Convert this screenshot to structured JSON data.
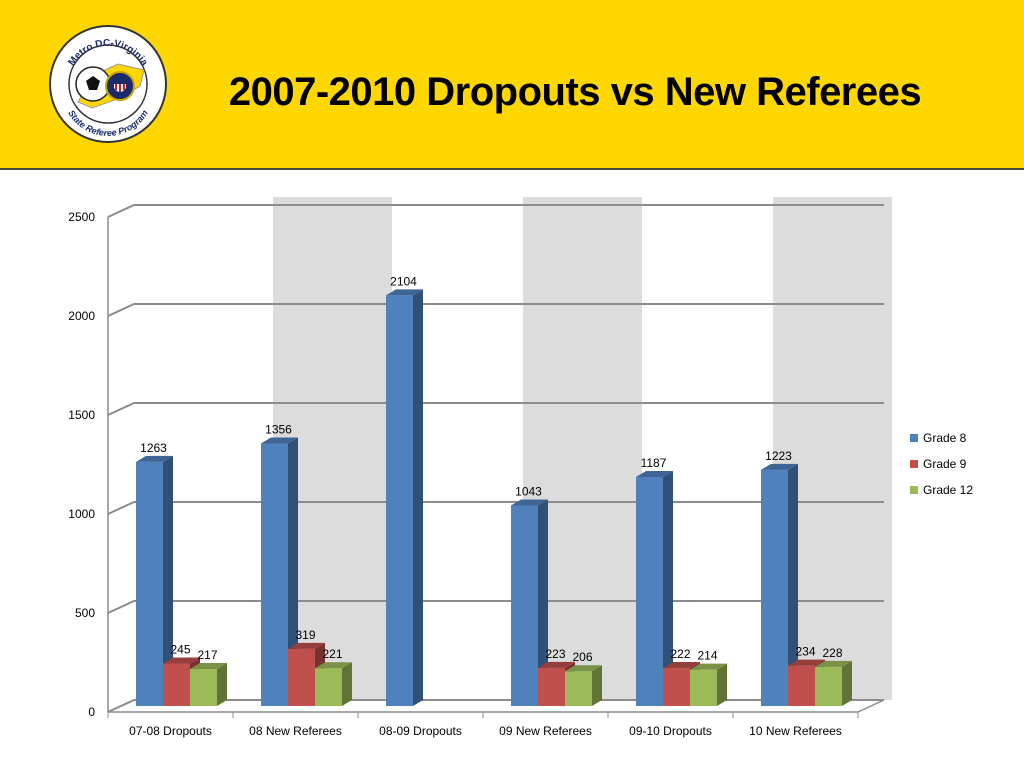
{
  "slide": {
    "title": "2007-2010 Dropouts vs New Referees",
    "logo": {
      "top_text": "Metro DC-Virginia",
      "bottom_text": "State Referee Program"
    }
  },
  "colors": {
    "header_bg": "#FFD700",
    "grade8": "#4F81BD",
    "grade9": "#C0504D",
    "grade12": "#9BBB59"
  },
  "chart_data": {
    "type": "bar",
    "title": "",
    "xlabel": "",
    "ylabel": "",
    "categories": [
      "07-08 Dropouts",
      "08 New Referees",
      "08-09 Dropouts",
      "09 New Referees",
      "09-10 Dropouts",
      "10 New Referees"
    ],
    "series": [
      {
        "name": "Grade 8",
        "values": [
          1263,
          1356,
          2104,
          1043,
          1187,
          1223
        ]
      },
      {
        "name": "Grade 9",
        "values": [
          245,
          319,
          null,
          223,
          222,
          234
        ]
      },
      {
        "name": "Grade 12",
        "values": [
          217,
          221,
          null,
          206,
          214,
          228
        ]
      }
    ],
    "ylim": [
      0,
      2500
    ],
    "yticks": [
      0,
      500,
      1000,
      1500,
      2000,
      2500
    ],
    "grid": true,
    "legend": "right",
    "style": "3d-clustered-column"
  }
}
